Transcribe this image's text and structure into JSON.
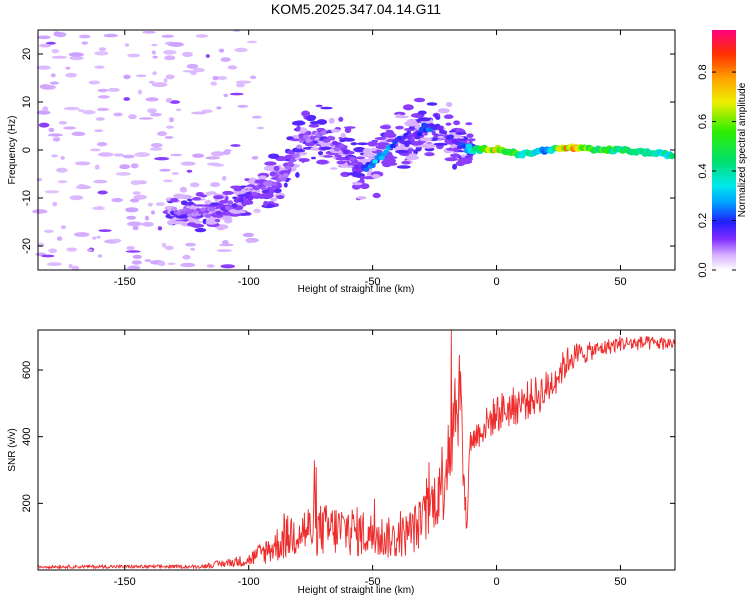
{
  "title": "KOM5.2025.347.04.14.G11",
  "chart_data": [
    {
      "type": "heatmap",
      "name": "spectrogram",
      "xlabel": "Height of straight line (km)",
      "ylabel": "Frequency (Hz)",
      "xlim": [
        -185,
        72
      ],
      "ylim": [
        -25,
        25
      ],
      "xticks": [
        -150,
        -100,
        -50,
        0,
        50
      ],
      "yticks": [
        -20,
        -10,
        0,
        10,
        20
      ],
      "xtick_labels": [
        "-150",
        "-100",
        "-50",
        "0",
        "50"
      ],
      "ytick_labels": [
        "-20",
        "-10",
        "0",
        "10",
        "20"
      ],
      "colorbar": {
        "label": "Normalized spectral amplitude",
        "range": [
          0,
          0.97
        ],
        "ticks": [
          0,
          0.2,
          0.4,
          0.6,
          0.8
        ],
        "tick_labels": [
          "0.0",
          "0.2",
          "0.4",
          "0.6",
          "0.8"
        ]
      },
      "ridge": {
        "x": [
          -130,
          -115,
          -105,
          -95,
          -85,
          -78,
          -72,
          -62,
          -55,
          -48,
          -40,
          -33,
          -28,
          -22,
          -16,
          -10,
          0,
          10,
          20,
          30,
          40,
          50,
          60,
          70
        ],
        "freq": [
          -13,
          -13,
          -11,
          -8,
          -5,
          2,
          4,
          0,
          -4,
          -2,
          2,
          3,
          5,
          4,
          1,
          0,
          0.3,
          -1,
          0,
          0.5,
          0,
          0,
          -0.5,
          -1
        ],
        "amplitude": [
          0.1,
          0.1,
          0.15,
          0.12,
          0.1,
          0.1,
          0.1,
          0.12,
          0.15,
          0.35,
          0.2,
          0.15,
          0.25,
          0.15,
          0.15,
          0.35,
          0.75,
          0.45,
          0.3,
          0.85,
          0.55,
          0.5,
          0.45,
          0.4
        ]
      },
      "noise_region_x": [
        -185,
        -95
      ]
    },
    {
      "type": "line",
      "name": "snr",
      "xlabel": "Height of straight line (km)",
      "ylabel": "SNR (v/v)",
      "xlim": [
        -185,
        72
      ],
      "ylim": [
        0,
        720
      ],
      "xticks": [
        -150,
        -100,
        -50,
        0,
        50
      ],
      "yticks": [
        200,
        400,
        600
      ],
      "xtick_labels": [
        "-150",
        "-100",
        "-50",
        "0",
        "50"
      ],
      "ytick_labels": [
        "200",
        "400",
        "600"
      ],
      "color": "#ee2a2a",
      "trend": {
        "x": [
          -185,
          -120,
          -100,
          -90,
          -80,
          -60,
          -40,
          -30,
          -22,
          -18,
          -15,
          -12,
          -11,
          -5,
          0,
          10,
          20,
          30,
          50,
          72
        ],
        "y": [
          10,
          10,
          30,
          70,
          120,
          120,
          90,
          140,
          260,
          450,
          550,
          100,
          380,
          430,
          470,
          500,
          540,
          640,
          680,
          680
        ]
      },
      "noise_amplitude": {
        "x": [
          -185,
          -120,
          -100,
          -80,
          -60,
          -40,
          -25,
          -18,
          -14,
          -12,
          -11,
          0,
          20,
          40,
          72
        ],
        "y": [
          5,
          5,
          20,
          80,
          80,
          60,
          90,
          200,
          150,
          30,
          40,
          60,
          60,
          25,
          20
        ]
      }
    }
  ]
}
